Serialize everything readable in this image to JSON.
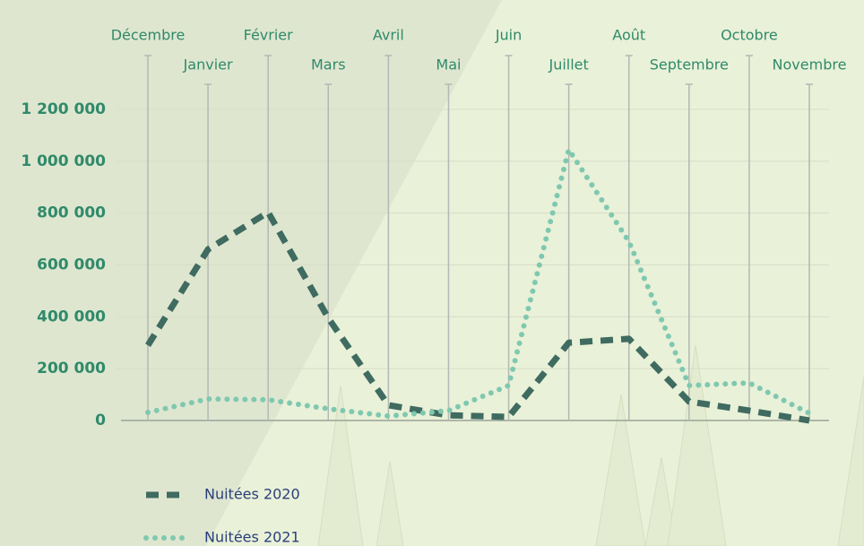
{
  "chart_data": {
    "type": "line",
    "categories": [
      "Décembre",
      "Janvier",
      "Février",
      "Mars",
      "Avril",
      "Mai",
      "Juin",
      "Juillet",
      "Août",
      "Septembre",
      "Octobre",
      "Novembre"
    ],
    "series": [
      {
        "name": "Nuitées 2020",
        "color": "#3f6b60",
        "style": "dashed",
        "values": [
          290000,
          660000,
          803000,
          395000,
          59000,
          20000,
          14000,
          300000,
          315000,
          73000,
          38000,
          0
        ]
      },
      {
        "name": "Nuitées 2021",
        "color": "#7fc8b0",
        "style": "dotted",
        "values": [
          31000,
          83000,
          80000,
          45000,
          17000,
          38000,
          135000,
          1045000,
          690000,
          135000,
          145000,
          28000
        ]
      }
    ],
    "ylim": [
      0,
      1200000
    ],
    "yticks": [
      0,
      {
        "value": 200000,
        "label": "200 000"
      },
      {
        "value": 400000,
        "label": "400 000"
      },
      {
        "value": 600000,
        "label": "600 000"
      },
      {
        "value": 800000,
        "label": "800 000"
      },
      {
        "value": 1000000,
        "label": "1 000 000"
      },
      {
        "value": 1200000,
        "label": "1 200 000"
      }
    ],
    "grid": true
  }
}
